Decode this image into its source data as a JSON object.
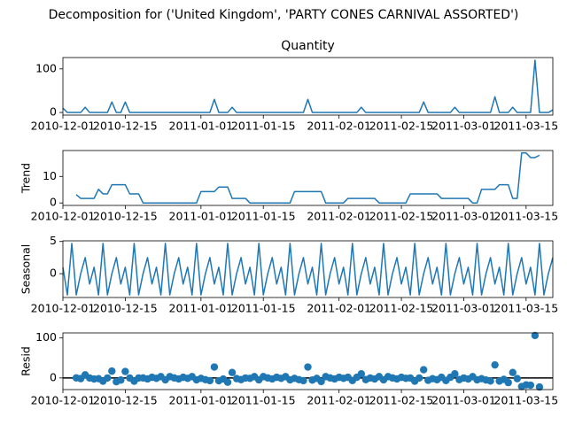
{
  "title": "Decomposition for ('United Kingdom', 'PARTY CONES CARNIVAL ASSORTED')",
  "chart_data": [
    {
      "type": "line",
      "title": "Quantity",
      "color": "#1f77b4",
      "x": [
        "2010-12-01",
        "2010-12-02",
        "2010-12-03",
        "2010-12-04",
        "2010-12-05",
        "2010-12-06",
        "2010-12-07",
        "2010-12-08",
        "2010-12-09",
        "2010-12-10",
        "2010-12-11",
        "2010-12-12",
        "2010-12-13",
        "2010-12-14",
        "2010-12-15",
        "2010-12-16",
        "2010-12-17",
        "2010-12-18",
        "2010-12-19",
        "2010-12-20",
        "2010-12-21",
        "2010-12-22",
        "2010-12-23",
        "2010-12-24",
        "2010-12-25",
        "2010-12-26",
        "2010-12-27",
        "2010-12-28",
        "2010-12-29",
        "2010-12-30",
        "2010-12-31",
        "2011-01-01",
        "2011-01-02",
        "2011-01-03",
        "2011-01-04",
        "2011-01-05",
        "2011-01-06",
        "2011-01-07",
        "2011-01-08",
        "2011-01-09",
        "2011-01-10",
        "2011-01-11",
        "2011-01-12",
        "2011-01-13",
        "2011-01-14",
        "2011-01-15",
        "2011-01-16",
        "2011-01-17",
        "2011-01-18",
        "2011-01-19",
        "2011-01-20",
        "2011-01-21",
        "2011-01-22",
        "2011-01-23",
        "2011-01-24",
        "2011-01-25",
        "2011-01-26",
        "2011-01-27",
        "2011-01-28",
        "2011-01-29",
        "2011-01-30",
        "2011-01-31",
        "2011-02-01",
        "2011-02-02",
        "2011-02-03",
        "2011-02-04",
        "2011-02-05",
        "2011-02-06",
        "2011-02-07",
        "2011-02-08",
        "2011-02-09",
        "2011-02-10",
        "2011-02-11",
        "2011-02-12",
        "2011-02-13",
        "2011-02-14",
        "2011-02-15",
        "2011-02-16",
        "2011-02-17",
        "2011-02-18",
        "2011-02-19",
        "2011-02-20",
        "2011-02-21",
        "2011-02-22",
        "2011-02-23",
        "2011-02-24",
        "2011-02-25",
        "2011-02-26",
        "2011-02-27",
        "2011-02-28",
        "2011-03-01",
        "2011-03-02",
        "2011-03-03",
        "2011-03-04",
        "2011-03-05",
        "2011-03-06",
        "2011-03-07",
        "2011-03-08",
        "2011-03-09",
        "2011-03-10",
        "2011-03-11",
        "2011-03-12",
        "2011-03-13",
        "2011-03-14",
        "2011-03-15",
        "2011-03-16",
        "2011-03-17",
        "2011-03-18",
        "2011-03-19",
        "2011-03-20",
        "2011-03-21"
      ],
      "values": [
        10,
        0,
        0,
        0,
        0,
        12,
        0,
        0,
        0,
        0,
        0,
        24,
        0,
        0,
        24,
        0,
        0,
        0,
        0,
        0,
        0,
        0,
        0,
        0,
        0,
        0,
        0,
        0,
        0,
        0,
        0,
        0,
        0,
        0,
        30,
        0,
        0,
        0,
        12,
        0,
        0,
        0,
        0,
        0,
        0,
        0,
        0,
        0,
        0,
        0,
        0,
        0,
        0,
        0,
        0,
        30,
        0,
        0,
        0,
        0,
        0,
        0,
        0,
        0,
        0,
        0,
        0,
        12,
        0,
        0,
        0,
        0,
        0,
        0,
        0,
        0,
        0,
        0,
        0,
        0,
        0,
        24,
        0,
        0,
        0,
        0,
        0,
        0,
        12,
        0,
        0,
        0,
        0,
        0,
        0,
        0,
        0,
        36,
        0,
        0,
        0,
        12,
        0,
        0,
        0,
        0,
        120,
        0,
        0,
        0,
        6
      ],
      "xlim": [
        "2010-12-01",
        "2011-03-21"
      ],
      "xticks": [
        "2010-12-01",
        "2010-12-15",
        "2011-01-01",
        "2011-01-15",
        "2011-02-01",
        "2011-02-15",
        "2011-03-01",
        "2011-03-15"
      ],
      "ylim": [
        -6,
        126
      ],
      "yticks": [
        0,
        100
      ]
    },
    {
      "type": "line",
      "ylabel": "Trend",
      "color": "#1f77b4",
      "x": [
        "2010-12-01",
        "2010-12-02",
        "2010-12-03",
        "2010-12-04",
        "2010-12-05",
        "2010-12-06",
        "2010-12-07",
        "2010-12-08",
        "2010-12-09",
        "2010-12-10",
        "2010-12-11",
        "2010-12-12",
        "2010-12-13",
        "2010-12-14",
        "2010-12-15",
        "2010-12-16",
        "2010-12-17",
        "2010-12-18",
        "2010-12-19",
        "2010-12-20",
        "2010-12-21",
        "2010-12-22",
        "2010-12-23",
        "2010-12-24",
        "2010-12-25",
        "2010-12-26",
        "2010-12-27",
        "2010-12-28",
        "2010-12-29",
        "2010-12-30",
        "2010-12-31",
        "2011-01-01",
        "2011-01-02",
        "2011-01-03",
        "2011-01-04",
        "2011-01-05",
        "2011-01-06",
        "2011-01-07",
        "2011-01-08",
        "2011-01-09",
        "2011-01-10",
        "2011-01-11",
        "2011-01-12",
        "2011-01-13",
        "2011-01-14",
        "2011-01-15",
        "2011-01-16",
        "2011-01-17",
        "2011-01-18",
        "2011-01-19",
        "2011-01-20",
        "2011-01-21",
        "2011-01-22",
        "2011-01-23",
        "2011-01-24",
        "2011-01-25",
        "2011-01-26",
        "2011-01-27",
        "2011-01-28",
        "2011-01-29",
        "2011-01-30",
        "2011-01-31",
        "2011-02-01",
        "2011-02-02",
        "2011-02-03",
        "2011-02-04",
        "2011-02-05",
        "2011-02-06",
        "2011-02-07",
        "2011-02-08",
        "2011-02-09",
        "2011-02-10",
        "2011-02-11",
        "2011-02-12",
        "2011-02-13",
        "2011-02-14",
        "2011-02-15",
        "2011-02-16",
        "2011-02-17",
        "2011-02-18",
        "2011-02-19",
        "2011-02-20",
        "2011-02-21",
        "2011-02-22",
        "2011-02-23",
        "2011-02-24",
        "2011-02-25",
        "2011-02-26",
        "2011-02-27",
        "2011-02-28",
        "2011-03-01",
        "2011-03-02",
        "2011-03-03",
        "2011-03-04",
        "2011-03-05",
        "2011-03-06",
        "2011-03-07",
        "2011-03-08",
        "2011-03-09",
        "2011-03-10",
        "2011-03-11",
        "2011-03-12",
        "2011-03-13",
        "2011-03-14",
        "2011-03-15",
        "2011-03-16",
        "2011-03-17",
        "2011-03-18",
        "2011-03-19",
        "2011-03-20",
        "2011-03-21"
      ],
      "values": [
        null,
        null,
        null,
        3.14,
        1.71,
        1.71,
        1.71,
        1.71,
        5.14,
        3.43,
        3.43,
        6.86,
        6.86,
        6.86,
        6.86,
        3.43,
        3.43,
        3.43,
        0,
        0,
        0,
        0,
        0,
        0,
        0,
        0,
        0,
        0,
        0,
        0,
        0,
        4.29,
        4.29,
        4.29,
        4.29,
        6.0,
        6.0,
        6.0,
        1.71,
        1.71,
        1.71,
        1.71,
        0,
        0,
        0,
        0,
        0,
        0,
        0,
        0,
        0,
        0,
        4.29,
        4.29,
        4.29,
        4.29,
        4.29,
        4.29,
        4.29,
        0,
        0,
        0,
        0,
        0,
        1.71,
        1.71,
        1.71,
        1.71,
        1.71,
        1.71,
        1.71,
        0,
        0,
        0,
        0,
        0,
        0,
        0,
        3.43,
        3.43,
        3.43,
        3.43,
        3.43,
        3.43,
        3.43,
        1.71,
        1.71,
        1.71,
        1.71,
        1.71,
        1.71,
        1.71,
        0,
        0,
        5.14,
        5.14,
        5.14,
        5.14,
        6.86,
        6.86,
        6.86,
        1.71,
        1.71,
        18.86,
        18.86,
        17.14,
        17.14,
        18.0,
        null,
        null,
        null
      ],
      "xlim": [
        "2010-12-01",
        "2011-03-21"
      ],
      "xticks": [
        "2010-12-01",
        "2010-12-15",
        "2011-01-01",
        "2011-01-15",
        "2011-02-01",
        "2011-02-15",
        "2011-03-01",
        "2011-03-15"
      ],
      "ylim": [
        -0.94,
        19.8
      ],
      "yticks": [
        0,
        10
      ]
    },
    {
      "type": "line",
      "ylabel": "Seasonal",
      "color": "#1f77b4",
      "x": [
        "2010-12-01",
        "2010-12-02",
        "2010-12-03",
        "2010-12-04",
        "2010-12-05",
        "2010-12-06",
        "2010-12-07",
        "2010-12-08",
        "2010-12-09",
        "2010-12-10",
        "2010-12-11",
        "2010-12-12",
        "2010-12-13",
        "2010-12-14",
        "2010-12-15",
        "2010-12-16",
        "2010-12-17",
        "2010-12-18",
        "2010-12-19",
        "2010-12-20",
        "2010-12-21",
        "2010-12-22",
        "2010-12-23",
        "2010-12-24",
        "2010-12-25",
        "2010-12-26",
        "2010-12-27",
        "2010-12-28",
        "2010-12-29",
        "2010-12-30",
        "2010-12-31",
        "2011-01-01",
        "2011-01-02",
        "2011-01-03",
        "2011-01-04",
        "2011-01-05",
        "2011-01-06",
        "2011-01-07",
        "2011-01-08",
        "2011-01-09",
        "2011-01-10",
        "2011-01-11",
        "2011-01-12",
        "2011-01-13",
        "2011-01-14",
        "2011-01-15",
        "2011-01-16",
        "2011-01-17",
        "2011-01-18",
        "2011-01-19",
        "2011-01-20",
        "2011-01-21",
        "2011-01-22",
        "2011-01-23",
        "2011-01-24",
        "2011-01-25",
        "2011-01-26",
        "2011-01-27",
        "2011-01-28",
        "2011-01-29",
        "2011-01-30",
        "2011-01-31",
        "2011-02-01",
        "2011-02-02",
        "2011-02-03",
        "2011-02-04",
        "2011-02-05",
        "2011-02-06",
        "2011-02-07",
        "2011-02-08",
        "2011-02-09",
        "2011-02-10",
        "2011-02-11",
        "2011-02-12",
        "2011-02-13",
        "2011-02-14",
        "2011-02-15",
        "2011-02-16",
        "2011-02-17",
        "2011-02-18",
        "2011-02-19",
        "2011-02-20",
        "2011-02-21",
        "2011-02-22",
        "2011-02-23",
        "2011-02-24",
        "2011-02-25",
        "2011-02-26",
        "2011-02-27",
        "2011-02-28",
        "2011-03-01",
        "2011-03-02",
        "2011-03-03",
        "2011-03-04",
        "2011-03-05",
        "2011-03-06",
        "2011-03-07",
        "2011-03-08",
        "2011-03-09",
        "2011-03-10",
        "2011-03-11",
        "2011-03-12",
        "2011-03-13",
        "2011-03-14",
        "2011-03-15",
        "2011-03-16",
        "2011-03-17",
        "2011-03-18",
        "2011-03-19",
        "2011-03-20",
        "2011-03-21"
      ],
      "values": [
        1.0,
        -3.3,
        4.7,
        -3.3,
        0,
        2.5,
        -1.6,
        1.0,
        -3.3,
        4.7,
        -3.3,
        0,
        2.5,
        -1.6,
        1.0,
        -3.3,
        4.7,
        -3.3,
        0,
        2.5,
        -1.6,
        1.0,
        -3.3,
        4.7,
        -3.3,
        0,
        2.5,
        -1.6,
        1.0,
        -3.3,
        4.7,
        -3.3,
        0,
        2.5,
        -1.6,
        1.0,
        -3.3,
        4.7,
        -3.3,
        0,
        2.5,
        -1.6,
        1.0,
        -3.3,
        4.7,
        -3.3,
        0,
        2.5,
        -1.6,
        1.0,
        -3.3,
        4.7,
        -3.3,
        0,
        2.5,
        -1.6,
        1.0,
        -3.3,
        4.7,
        -3.3,
        0,
        2.5,
        -1.6,
        1.0,
        -3.3,
        4.7,
        -3.3,
        0,
        2.5,
        -1.6,
        1.0,
        -3.3,
        4.7,
        -3.3,
        0,
        2.5,
        -1.6,
        1.0,
        -3.3,
        4.7,
        -3.3,
        0,
        2.5,
        -1.6,
        1.0,
        -3.3,
        4.7,
        -3.3,
        0,
        2.5,
        -1.6,
        1.0,
        -3.3,
        4.7,
        -3.3,
        0,
        2.5,
        -1.6,
        1.0,
        -3.3,
        4.7,
        -3.3,
        0,
        2.5,
        -1.6,
        1.0,
        -3.3,
        4.7,
        -3.3,
        0,
        2.5
      ],
      "xlim": [
        "2010-12-01",
        "2011-03-21"
      ],
      "xticks": [
        "2010-12-01",
        "2010-12-15",
        "2011-01-01",
        "2011-01-15",
        "2011-02-01",
        "2011-02-15",
        "2011-03-01",
        "2011-03-15"
      ],
      "ylim": [
        -3.7,
        5.1
      ],
      "yticks": [
        0,
        5
      ]
    },
    {
      "type": "scatter",
      "ylabel": "Resid",
      "color": "#1f77b4",
      "zero_line": true,
      "x": [
        "2010-12-01",
        "2010-12-02",
        "2010-12-03",
        "2010-12-04",
        "2010-12-05",
        "2010-12-06",
        "2010-12-07",
        "2010-12-08",
        "2010-12-09",
        "2010-12-10",
        "2010-12-11",
        "2010-12-12",
        "2010-12-13",
        "2010-12-14",
        "2010-12-15",
        "2010-12-16",
        "2010-12-17",
        "2010-12-18",
        "2010-12-19",
        "2010-12-20",
        "2010-12-21",
        "2010-12-22",
        "2010-12-23",
        "2010-12-24",
        "2010-12-25",
        "2010-12-26",
        "2010-12-27",
        "2010-12-28",
        "2010-12-29",
        "2010-12-30",
        "2010-12-31",
        "2011-01-01",
        "2011-01-02",
        "2011-01-03",
        "2011-01-04",
        "2011-01-05",
        "2011-01-06",
        "2011-01-07",
        "2011-01-08",
        "2011-01-09",
        "2011-01-10",
        "2011-01-11",
        "2011-01-12",
        "2011-01-13",
        "2011-01-14",
        "2011-01-15",
        "2011-01-16",
        "2011-01-17",
        "2011-01-18",
        "2011-01-19",
        "2011-01-20",
        "2011-01-21",
        "2011-01-22",
        "2011-01-23",
        "2011-01-24",
        "2011-01-25",
        "2011-01-26",
        "2011-01-27",
        "2011-01-28",
        "2011-01-29",
        "2011-01-30",
        "2011-01-31",
        "2011-02-01",
        "2011-02-02",
        "2011-02-03",
        "2011-02-04",
        "2011-02-05",
        "2011-02-06",
        "2011-02-07",
        "2011-02-08",
        "2011-02-09",
        "2011-02-10",
        "2011-02-11",
        "2011-02-12",
        "2011-02-13",
        "2011-02-14",
        "2011-02-15",
        "2011-02-16",
        "2011-02-17",
        "2011-02-18",
        "2011-02-19",
        "2011-02-20",
        "2011-02-21",
        "2011-02-22",
        "2011-02-23",
        "2011-02-24",
        "2011-02-25",
        "2011-02-26",
        "2011-02-27",
        "2011-02-28",
        "2011-03-01",
        "2011-03-02",
        "2011-03-03",
        "2011-03-04",
        "2011-03-05",
        "2011-03-06",
        "2011-03-07",
        "2011-03-08",
        "2011-03-09",
        "2011-03-10",
        "2011-03-11",
        "2011-03-12",
        "2011-03-13",
        "2011-03-14",
        "2011-03-15",
        "2011-03-16",
        "2011-03-17",
        "2011-03-18",
        "2011-03-19",
        "2011-03-20",
        "2011-03-21"
      ],
      "values": [
        null,
        null,
        null,
        0.2,
        -1.7,
        7.8,
        -0.1,
        -2.7,
        -1.8,
        -8.1,
        -0.1,
        17.1,
        -9.4,
        -5.3,
        16.1,
        -0.1,
        -8.1,
        -0.1,
        0,
        -2.5,
        1.6,
        -1,
        3.3,
        -4.7,
        3.3,
        0,
        -2.5,
        1.6,
        -1,
        3.3,
        -4.7,
        -1.0,
        -4.3,
        -6.8,
        27.3,
        -7,
        -2.7,
        -10.7,
        13.6,
        -1.7,
        -4.2,
        -0.1,
        -1,
        3.3,
        -4.7,
        3.3,
        0,
        -2.5,
        1.6,
        -1,
        3.3,
        -4.7,
        -1.0,
        -4.3,
        -6.8,
        27.3,
        -5.3,
        -1.0,
        -9.0,
        3.3,
        0,
        -2.5,
        1.6,
        -1,
        1.6,
        -6.4,
        1.6,
        10.3,
        -4.2,
        -0.1,
        -2.7,
        3.3,
        -4.7,
        3.3,
        0,
        -2.5,
        1.6,
        -1,
        -0.1,
        -8.1,
        -0.1,
        20.6,
        -5.9,
        -1.8,
        -4.4,
        1.6,
        -6.4,
        1.6,
        10.3,
        -4.2,
        -0.1,
        -2.7,
        3.3,
        -4.7,
        -1.8,
        -5.1,
        -7.6,
        32.5,
        -7.9,
        -3.6,
        -11.6,
        13.6,
        -1.7,
        -21.4,
        -17.3,
        -18.1,
        106.2,
        -22.7,
        null,
        null,
        null
      ],
      "xlim": [
        "2010-12-01",
        "2011-03-21"
      ],
      "xticks": [
        "2010-12-01",
        "2010-12-15",
        "2011-01-01",
        "2011-01-15",
        "2011-02-01",
        "2011-02-15",
        "2011-03-01",
        "2011-03-15"
      ],
      "ylim": [
        -29.1,
        112.6
      ],
      "yticks": [
        0,
        100
      ]
    }
  ]
}
